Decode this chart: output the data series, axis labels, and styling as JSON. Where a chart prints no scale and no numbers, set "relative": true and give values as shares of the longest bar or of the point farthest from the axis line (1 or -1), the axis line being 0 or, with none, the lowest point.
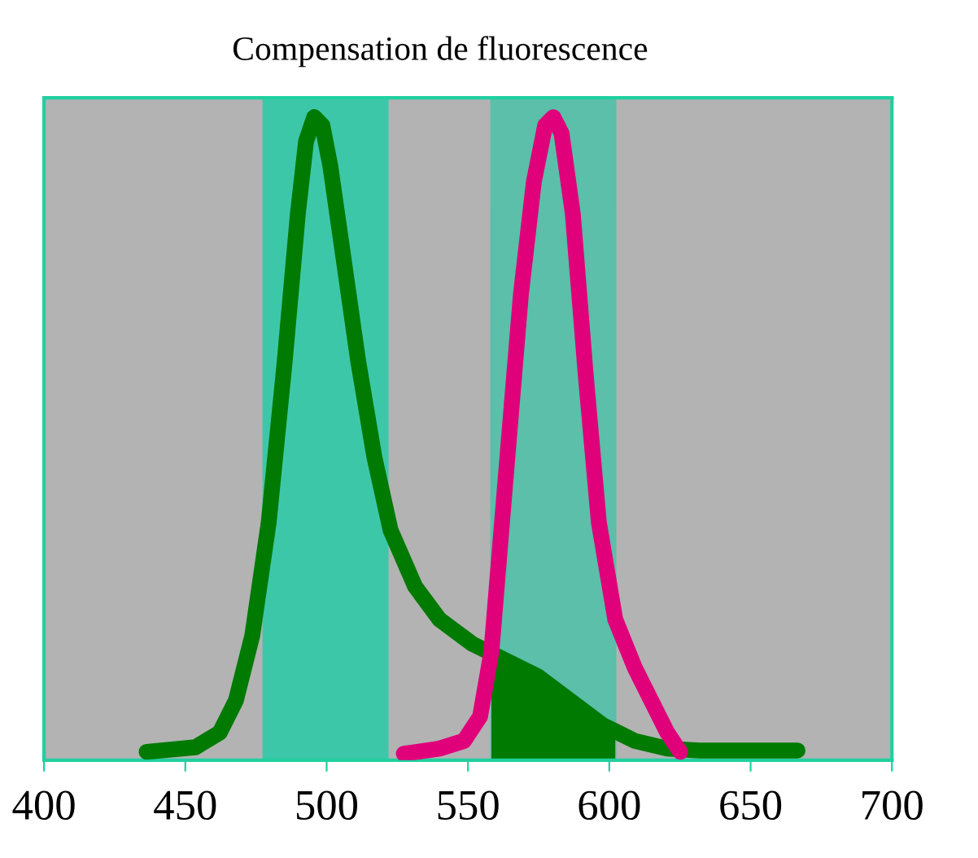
{
  "chart_data": {
    "type": "line",
    "title": "Compensation de fluorescence",
    "relative": true,
    "xlim": [
      400,
      700
    ],
    "xticks": [
      400,
      450,
      500,
      550,
      600,
      650,
      700
    ],
    "tick_labels": "x",
    "grid": false,
    "line_style": "solid",
    "marker": "none",
    "bands": [
      {
        "axis": "x",
        "from": 477.7,
        "to": 521.5,
        "color": "#3cc8a8"
      },
      {
        "axis": "x",
        "from": 558.3,
        "to": 602.1,
        "color": "#5bbfaa"
      }
    ],
    "series": [
      {
        "type": "area",
        "color": "#007a00",
        "x": [
          558.3,
          563,
          574.5,
          586,
          597.5,
          602.1
        ],
        "values": [
          0.172,
          0.156,
          0.131,
          0.093,
          0.055,
          0.045
        ]
      },
      {
        "color": "#007a00",
        "x": [
          436.3,
          453.5,
          462.2,
          467.9,
          473.7,
          479.5,
          485.2,
          489.8,
          492.7,
          495.6,
          498.5,
          501.3,
          505.4,
          511.1,
          516.9,
          522.6,
          531.3,
          539.9,
          551.5,
          563,
          574.5,
          586,
          597.5,
          609,
          620.5,
          632,
          666.6
        ],
        "values": [
          0.013,
          0.02,
          0.043,
          0.093,
          0.194,
          0.37,
          0.622,
          0.849,
          0.962,
          1,
          0.987,
          0.924,
          0.798,
          0.622,
          0.471,
          0.358,
          0.27,
          0.219,
          0.181,
          0.156,
          0.131,
          0.093,
          0.055,
          0.03,
          0.018,
          0.015,
          0.015
        ]
      },
      {
        "color": "#e0007a",
        "x": [
          527.3,
          539.9,
          548.6,
          554.3,
          558.3,
          563,
          568.7,
          573.3,
          577.3,
          580.2,
          583.1,
          587.1,
          591.7,
          596.3,
          602.1,
          609,
          614.8,
          620.5,
          625.1
        ],
        "values": [
          0.01,
          0.018,
          0.03,
          0.068,
          0.169,
          0.421,
          0.723,
          0.899,
          0.987,
          1,
          0.975,
          0.849,
          0.597,
          0.37,
          0.219,
          0.144,
          0.093,
          0.043,
          0.013
        ]
      }
    ]
  }
}
